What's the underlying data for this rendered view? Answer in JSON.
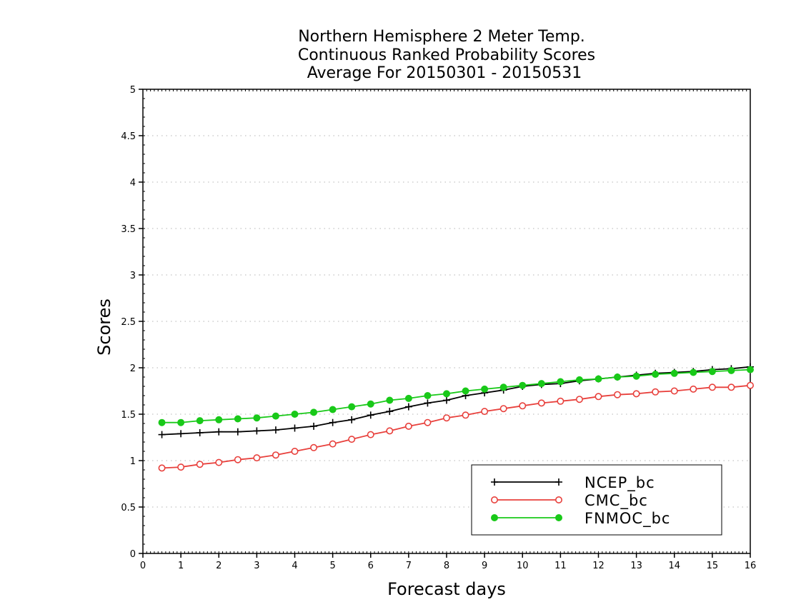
{
  "chart_data": {
    "type": "line",
    "title_lines": [
      "Northern Hemisphere 2 Meter Temp.",
      "Continuous Ranked Probability Scores",
      "Average For 20150301 - 20150531"
    ],
    "xlabel": "Forecast days",
    "ylabel": "Scores",
    "xlim": [
      0,
      16
    ],
    "ylim": [
      0,
      5
    ],
    "xticks": [
      0,
      1,
      2,
      3,
      4,
      5,
      6,
      7,
      8,
      9,
      10,
      11,
      12,
      13,
      14,
      15,
      16
    ],
    "yticks": [
      0,
      0.5,
      1,
      1.5,
      2,
      2.5,
      3,
      3.5,
      4,
      4.5,
      5
    ],
    "xtick_labels": [
      "0",
      "1",
      "2",
      "3",
      "4",
      "5",
      "6",
      "7",
      "8",
      "9",
      "10",
      "11",
      "12",
      "13",
      "14",
      "15",
      "16"
    ],
    "ytick_labels": [
      "0",
      "0.5",
      "1",
      "1.5",
      "2",
      "2.5",
      "3",
      "3.5",
      "4",
      "4.5",
      "5"
    ],
    "grid": true,
    "legend_position": "bottom-right",
    "x": [
      0.5,
      1,
      1.5,
      2,
      2.5,
      3,
      3.5,
      4,
      4.5,
      5,
      5.5,
      6,
      6.5,
      7,
      7.5,
      8,
      8.5,
      9,
      9.5,
      10,
      10.5,
      11,
      11.5,
      12,
      12.5,
      13,
      13.5,
      14,
      14.5,
      15,
      15.5,
      16
    ],
    "series": [
      {
        "name": "NCEP_bc",
        "color": "#000000",
        "marker": "plus",
        "values": [
          1.28,
          1.29,
          1.3,
          1.31,
          1.31,
          1.32,
          1.33,
          1.35,
          1.37,
          1.41,
          1.44,
          1.49,
          1.53,
          1.58,
          1.62,
          1.65,
          1.7,
          1.73,
          1.76,
          1.8,
          1.82,
          1.83,
          1.86,
          1.88,
          1.9,
          1.92,
          1.94,
          1.95,
          1.96,
          1.98,
          1.99,
          2.01
        ]
      },
      {
        "name": "CMC_bc",
        "color": "#e8403c",
        "marker": "circle-open",
        "values": [
          0.92,
          0.93,
          0.96,
          0.98,
          1.01,
          1.03,
          1.06,
          1.1,
          1.14,
          1.18,
          1.23,
          1.28,
          1.32,
          1.37,
          1.41,
          1.46,
          1.49,
          1.53,
          1.56,
          1.59,
          1.62,
          1.64,
          1.66,
          1.69,
          1.71,
          1.72,
          1.74,
          1.75,
          1.77,
          1.79,
          1.79,
          1.81
        ]
      },
      {
        "name": "FNMOC_bc",
        "color": "#19c919",
        "marker": "circle-filled",
        "values": [
          1.41,
          1.41,
          1.43,
          1.44,
          1.45,
          1.46,
          1.48,
          1.5,
          1.52,
          1.55,
          1.58,
          1.61,
          1.65,
          1.67,
          1.7,
          1.72,
          1.75,
          1.77,
          1.79,
          1.81,
          1.83,
          1.85,
          1.87,
          1.88,
          1.9,
          1.91,
          1.93,
          1.94,
          1.95,
          1.96,
          1.97,
          1.98
        ]
      }
    ]
  }
}
